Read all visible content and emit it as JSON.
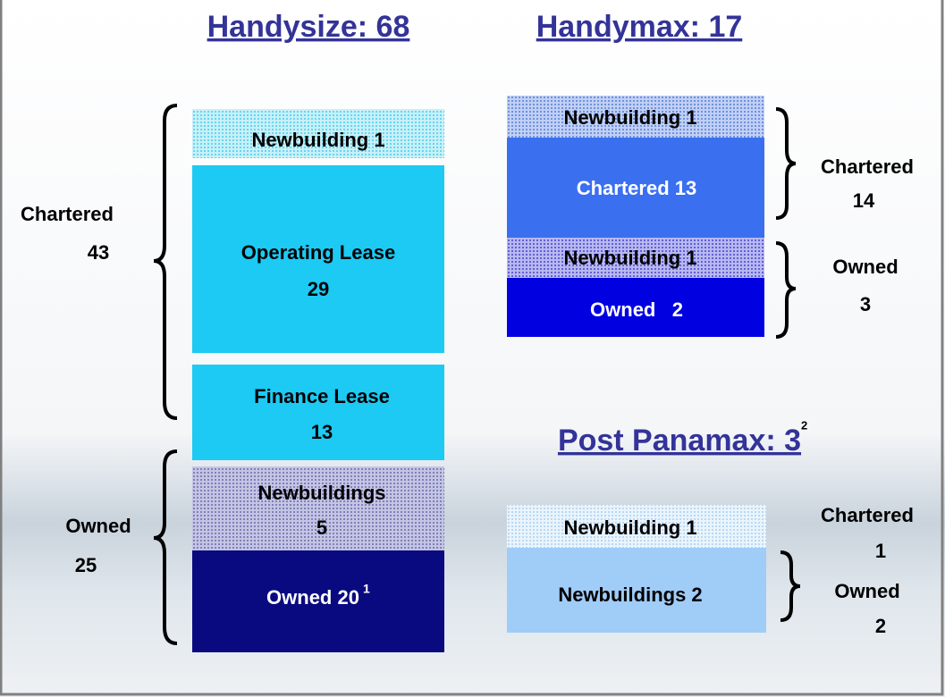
{
  "handysize": {
    "title": "Handysize: 68",
    "boxes": [
      {
        "lines": [
          "Newbuilding 1"
        ]
      },
      {
        "lines": [
          "Operating Lease",
          "29"
        ]
      },
      {
        "lines": [
          "Finance Lease",
          "13"
        ]
      },
      {
        "lines": [
          "Newbuildings",
          "5"
        ]
      },
      {
        "lines": [
          "Owned 20"
        ],
        "superscript": "1"
      }
    ],
    "groups": [
      {
        "label": "Chartered",
        "value": "43"
      },
      {
        "label": "Owned",
        "value": "25"
      }
    ]
  },
  "handymax": {
    "title": "Handymax: 17",
    "boxes": [
      {
        "lines": [
          "Newbuilding 1"
        ]
      },
      {
        "lines": [
          "Chartered 13"
        ]
      },
      {
        "lines": [
          "Newbuilding 1"
        ]
      },
      {
        "lines": [
          "Owned   2"
        ]
      }
    ],
    "groups": [
      {
        "label": "Chartered",
        "value": "14"
      },
      {
        "label": "Owned",
        "value": "3"
      }
    ]
  },
  "post_panamax": {
    "title": "Post Panamax: 3",
    "superscript": "2",
    "boxes": [
      {
        "lines": [
          "Newbuilding 1"
        ]
      },
      {
        "lines": [
          "Newbuildings 2"
        ]
      }
    ],
    "groups": [
      {
        "label": "Chartered",
        "value": "1"
      },
      {
        "label": "Owned",
        "value": "2"
      }
    ]
  }
}
